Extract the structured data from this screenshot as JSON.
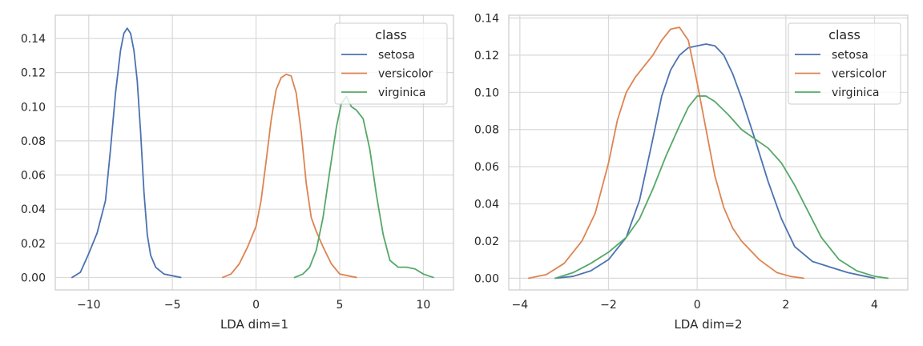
{
  "chart_data": [
    {
      "type": "line",
      "xlabel": "LDA dim=1",
      "ylabel": "",
      "xlim": [
        -12,
        11.8
      ],
      "ylim": [
        -0.0073,
        0.1536
      ],
      "xticks": [
        -10,
        -5,
        0,
        5,
        10
      ],
      "xtick_labels": [
        "−10",
        "−5",
        "0",
        "5",
        "10"
      ],
      "yticks": [
        0.0,
        0.02,
        0.04,
        0.06,
        0.08,
        0.1,
        0.12,
        0.14
      ],
      "ytick_labels": [
        "0.00",
        "0.02",
        "0.04",
        "0.06",
        "0.08",
        "0.10",
        "0.12",
        "0.14"
      ],
      "grid": true,
      "legend": {
        "title": "class",
        "position": "top-right"
      },
      "series": [
        {
          "name": "setosa",
          "color": "#4c72b0",
          "x": [
            -11.0,
            -10.5,
            -10.0,
            -9.5,
            -9.0,
            -8.7,
            -8.4,
            -8.1,
            -7.9,
            -7.7,
            -7.5,
            -7.3,
            -7.1,
            -6.9,
            -6.7,
            -6.5,
            -6.3,
            -6.0,
            -5.5,
            -5.0,
            -4.5
          ],
          "y": [
            0.0,
            0.003,
            0.014,
            0.026,
            0.045,
            0.075,
            0.108,
            0.133,
            0.143,
            0.146,
            0.143,
            0.133,
            0.115,
            0.085,
            0.05,
            0.025,
            0.013,
            0.006,
            0.002,
            0.001,
            0.0
          ]
        },
        {
          "name": "versicolor",
          "color": "#dd8452",
          "x": [
            -2.0,
            -1.5,
            -1.0,
            -0.5,
            0.0,
            0.3,
            0.6,
            0.9,
            1.2,
            1.5,
            1.8,
            2.1,
            2.4,
            2.7,
            3.0,
            3.3,
            3.6,
            4.0,
            4.5,
            5.0,
            5.5,
            6.0
          ],
          "y": [
            0.0,
            0.002,
            0.008,
            0.018,
            0.03,
            0.045,
            0.068,
            0.092,
            0.11,
            0.117,
            0.119,
            0.118,
            0.108,
            0.085,
            0.055,
            0.035,
            0.027,
            0.018,
            0.008,
            0.002,
            0.001,
            0.0
          ]
        },
        {
          "name": "virginica",
          "color": "#55a868",
          "x": [
            2.3,
            2.8,
            3.2,
            3.6,
            4.0,
            4.4,
            4.8,
            5.1,
            5.4,
            5.7,
            6.0,
            6.4,
            6.8,
            7.2,
            7.6,
            8.0,
            8.5,
            9.0,
            9.5,
            10.0,
            10.6
          ],
          "y": [
            0.0,
            0.002,
            0.006,
            0.016,
            0.035,
            0.062,
            0.088,
            0.102,
            0.106,
            0.1,
            0.098,
            0.093,
            0.075,
            0.048,
            0.025,
            0.01,
            0.006,
            0.006,
            0.005,
            0.002,
            0.0
          ]
        }
      ]
    },
    {
      "type": "line",
      "xlabel": "LDA dim=2",
      "ylabel": "",
      "xlim": [
        -4.25,
        4.75
      ],
      "ylim": [
        -0.0063,
        0.1415
      ],
      "xticks": [
        -4,
        -2,
        0,
        2,
        4
      ],
      "xtick_labels": [
        "−4",
        "−2",
        "0",
        "2",
        "4"
      ],
      "yticks": [
        0.0,
        0.02,
        0.04,
        0.06,
        0.08,
        0.1,
        0.12,
        0.14
      ],
      "ytick_labels": [
        "0.00",
        "0.02",
        "0.04",
        "0.06",
        "0.08",
        "0.10",
        "0.12",
        "0.14"
      ],
      "grid": true,
      "legend": {
        "title": "class",
        "position": "top-right"
      },
      "series": [
        {
          "name": "setosa",
          "color": "#4c72b0",
          "x": [
            -3.2,
            -2.8,
            -2.4,
            -2.0,
            -1.6,
            -1.3,
            -1.0,
            -0.8,
            -0.6,
            -0.4,
            -0.2,
            0.0,
            0.2,
            0.4,
            0.6,
            0.8,
            1.0,
            1.3,
            1.6,
            1.9,
            2.2,
            2.6,
            3.0,
            3.4,
            3.8,
            4.0
          ],
          "y": [
            0.0,
            0.001,
            0.004,
            0.01,
            0.022,
            0.042,
            0.075,
            0.098,
            0.112,
            0.12,
            0.124,
            0.125,
            0.126,
            0.125,
            0.12,
            0.11,
            0.097,
            0.075,
            0.052,
            0.032,
            0.017,
            0.009,
            0.006,
            0.003,
            0.001,
            0.0
          ]
        },
        {
          "name": "versicolor",
          "color": "#dd8452",
          "x": [
            -3.8,
            -3.4,
            -3.0,
            -2.6,
            -2.3,
            -2.0,
            -1.8,
            -1.6,
            -1.4,
            -1.2,
            -1.0,
            -0.8,
            -0.6,
            -0.4,
            -0.2,
            0.0,
            0.2,
            0.4,
            0.6,
            0.8,
            1.0,
            1.4,
            1.8,
            2.1,
            2.4
          ],
          "y": [
            0.0,
            0.002,
            0.008,
            0.02,
            0.035,
            0.062,
            0.085,
            0.1,
            0.108,
            0.114,
            0.12,
            0.128,
            0.134,
            0.135,
            0.128,
            0.105,
            0.08,
            0.055,
            0.038,
            0.027,
            0.02,
            0.01,
            0.003,
            0.001,
            0.0
          ]
        },
        {
          "name": "virginica",
          "color": "#55a868",
          "x": [
            -3.2,
            -2.8,
            -2.4,
            -2.0,
            -1.6,
            -1.3,
            -1.0,
            -0.7,
            -0.4,
            -0.2,
            0.0,
            0.2,
            0.4,
            0.7,
            1.0,
            1.3,
            1.6,
            1.9,
            2.2,
            2.5,
            2.8,
            3.2,
            3.6,
            4.0,
            4.3
          ],
          "y": [
            0.0,
            0.003,
            0.008,
            0.014,
            0.022,
            0.032,
            0.048,
            0.066,
            0.082,
            0.092,
            0.098,
            0.098,
            0.095,
            0.088,
            0.08,
            0.075,
            0.07,
            0.062,
            0.05,
            0.036,
            0.022,
            0.01,
            0.004,
            0.001,
            0.0
          ]
        }
      ]
    }
  ]
}
